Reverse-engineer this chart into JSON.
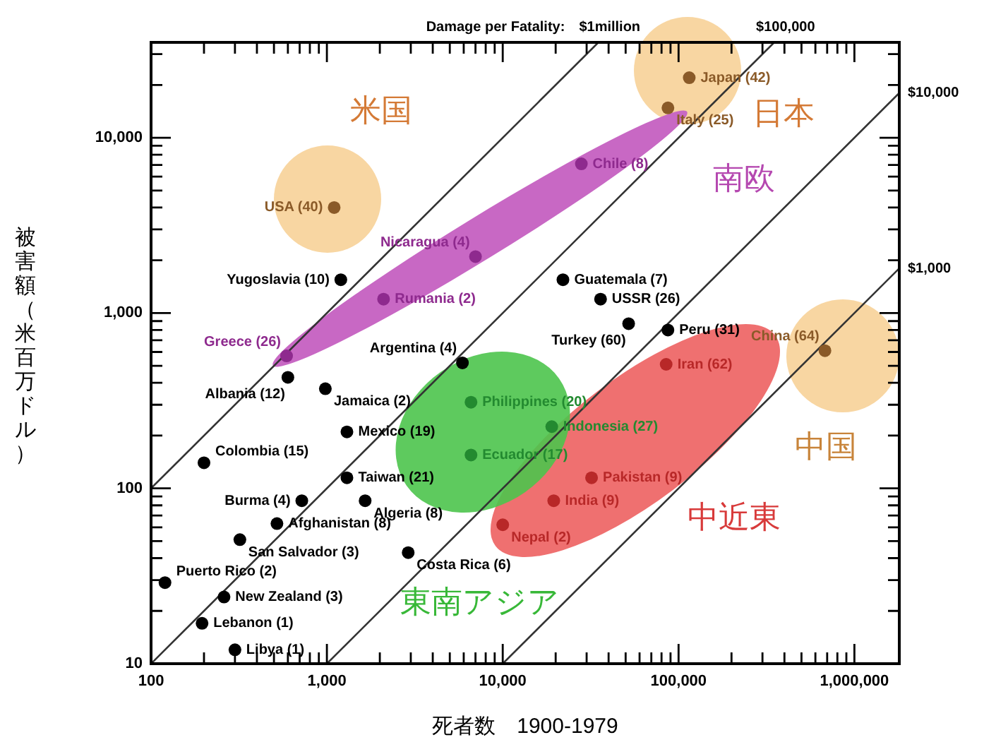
{
  "chart_data": {
    "type": "scatter",
    "xlabel": "死者数　1900-1979",
    "ylabel": "被害額（米百万ドル）",
    "log": "xy",
    "grid": false,
    "legend": false,
    "xlim": [
      100,
      1800000
    ],
    "ylim": [
      10,
      35000
    ],
    "xticks": [
      100,
      {
        "value": 200,
        "label": null
      },
      {
        "value": 300,
        "label": null
      },
      {
        "value": 400,
        "label": null
      },
      {
        "value": 500,
        "label": null
      },
      {
        "value": 600,
        "label": null
      },
      {
        "value": 700,
        "label": null
      },
      {
        "value": 800,
        "label": null
      },
      {
        "value": 900,
        "label": null
      },
      {
        "value": 1000,
        "label": "1,000"
      },
      {
        "value": 2000,
        "label": null
      },
      {
        "value": 3000,
        "label": null
      },
      {
        "value": 4000,
        "label": null
      },
      {
        "value": 5000,
        "label": null
      },
      {
        "value": 6000,
        "label": null
      },
      {
        "value": 7000,
        "label": null
      },
      {
        "value": 8000,
        "label": null
      },
      {
        "value": 9000,
        "label": null
      },
      {
        "value": 10000,
        "label": "10,000"
      },
      {
        "value": 20000,
        "label": null
      },
      {
        "value": 30000,
        "label": null
      },
      {
        "value": 40000,
        "label": null
      },
      {
        "value": 50000,
        "label": null
      },
      {
        "value": 60000,
        "label": null
      },
      {
        "value": 70000,
        "label": null
      },
      {
        "value": 80000,
        "label": null
      },
      {
        "value": 90000,
        "label": null
      },
      {
        "value": 100000,
        "label": "100,000"
      },
      {
        "value": 200000,
        "label": null
      },
      {
        "value": 300000,
        "label": null
      },
      {
        "value": 400000,
        "label": null
      },
      {
        "value": 500000,
        "label": null
      },
      {
        "value": 600000,
        "label": null
      },
      {
        "value": 700000,
        "label": null
      },
      {
        "value": 800000,
        "label": null
      },
      {
        "value": 900000,
        "label": null
      },
      {
        "value": 1000000,
        "label": "1,000,000"
      }
    ],
    "yticks": [
      10,
      {
        "value": 20,
        "label": null
      },
      {
        "value": 30,
        "label": null
      },
      {
        "value": 40,
        "label": null
      },
      {
        "value": 50,
        "label": null
      },
      {
        "value": 60,
        "label": null
      },
      {
        "value": 70,
        "label": null
      },
      {
        "value": 80,
        "label": null
      },
      {
        "value": 90,
        "label": null
      },
      100,
      {
        "value": 200,
        "label": null
      },
      {
        "value": 300,
        "label": null
      },
      {
        "value": 400,
        "label": null
      },
      {
        "value": 500,
        "label": null
      },
      {
        "value": 600,
        "label": null
      },
      {
        "value": 700,
        "label": null
      },
      {
        "value": 800,
        "label": null
      },
      {
        "value": 900,
        "label": null
      },
      {
        "value": 1000,
        "label": "1,000"
      },
      {
        "value": 2000,
        "label": null
      },
      {
        "value": 3000,
        "label": null
      },
      {
        "value": 4000,
        "label": null
      },
      {
        "value": 5000,
        "label": null
      },
      {
        "value": 6000,
        "label": null
      },
      {
        "value": 7000,
        "label": null
      },
      {
        "value": 8000,
        "label": null
      },
      {
        "value": 9000,
        "label": null
      },
      {
        "value": 10000,
        "label": "10,000"
      },
      {
        "value": 20000,
        "label": null
      },
      {
        "value": 30000,
        "label": null
      }
    ],
    "series": [
      {
        "type": "line",
        "name": "$1million",
        "color": "#333333",
        "marker": "none",
        "x": [
          100,
          35000
        ],
        "values": [
          100,
          35000
        ]
      },
      {
        "type": "line",
        "name": "$100,000",
        "color": "#333333",
        "marker": "none",
        "x": [
          100,
          350000
        ],
        "values": [
          10,
          35000
        ]
      },
      {
        "type": "line",
        "name": "$10,000",
        "color": "#333333",
        "marker": "none",
        "x": [
          1000,
          1800000
        ],
        "values": [
          10,
          18000
        ]
      },
      {
        "type": "line",
        "name": "$1,000",
        "color": "#333333",
        "marker": "none",
        "x": [
          10000,
          1800000
        ],
        "values": [
          10,
          1800
        ]
      },
      {
        "marker": "circle",
        "x": [
          1100,
          115000,
          87000,
          680000,
          590,
          2100,
          7000,
          28000,
          1200,
          22000,
          36000,
          52000,
          87000,
          85000,
          5900,
          6600,
          6600,
          19000,
          32000,
          19500,
          10000,
          600,
          980,
          1300,
          200,
          1300,
          720,
          1650,
          520,
          320,
          2900,
          120,
          260,
          195,
          300
        ],
        "values": [
          4000,
          22000,
          14800,
          610,
          570,
          1200,
          2100,
          7100,
          1550,
          1550,
          1200,
          870,
          800,
          510,
          520,
          310,
          155,
          225,
          115,
          85,
          62,
          430,
          370,
          210,
          140,
          115,
          85,
          85,
          63,
          51,
          43,
          29,
          24,
          17,
          12
        ],
        "colors": [
          "#8a5a28",
          "#8a5a28",
          "#8a5a28",
          "#8a5a28",
          "#8e2a8e",
          "#8e2a8e",
          "#8e2a8e",
          "#8e2a8e",
          "#000000",
          "#000000",
          "#000000",
          "#000000",
          "#000000",
          "#b82828",
          "#000000",
          "#238a30",
          "#238a30",
          "#238a30",
          "#b82828",
          "#b82828",
          "#b82828",
          "#000000",
          "#000000",
          "#000000",
          "#000000",
          "#000000",
          "#000000",
          "#000000",
          "#000000",
          "#000000",
          "#000000",
          "#000000",
          "#000000",
          "#000000",
          "#000000"
        ]
      }
    ],
    "annotations": [
      {
        "text": "USA (40)",
        "x": 1100,
        "y": 4000
      },
      {
        "text": "Japan (42)",
        "x": 115000,
        "y": 22000
      },
      {
        "text": "Italy (25)",
        "x": 87000,
        "y": 14800
      },
      {
        "text": "China (64)",
        "x": 680000,
        "y": 610
      },
      {
        "text": "Greece (26)",
        "x": 590,
        "y": 570
      },
      {
        "text": "Rumania (2)",
        "x": 2100,
        "y": 1200
      },
      {
        "text": "Nicaragua (4)",
        "x": 7000,
        "y": 2100
      },
      {
        "text": "Chile (8)",
        "x": 28000,
        "y": 7100
      },
      {
        "text": "Yugoslavia (10)",
        "x": 1200,
        "y": 1550
      },
      {
        "text": "Guatemala (7)",
        "x": 22000,
        "y": 1550
      },
      {
        "text": "USSR (26)",
        "x": 36000,
        "y": 1200
      },
      {
        "text": "Turkey (60)",
        "x": 52000,
        "y": 870
      },
      {
        "text": "Peru (31)",
        "x": 87000,
        "y": 800
      },
      {
        "text": "Iran (62)",
        "x": 85000,
        "y": 510
      },
      {
        "text": "Argentina (4)",
        "x": 5900,
        "y": 520
      },
      {
        "text": "Philippines (20)",
        "x": 6600,
        "y": 310
      },
      {
        "text": "Ecuador (17)",
        "x": 6600,
        "y": 155
      },
      {
        "text": "Indonesia (27)",
        "x": 19000,
        "y": 225
      },
      {
        "text": "Pakistan (9)",
        "x": 32000,
        "y": 115
      },
      {
        "text": "India (9)",
        "x": 19500,
        "y": 85
      },
      {
        "text": "Nepal (2)",
        "x": 10000,
        "y": 62
      },
      {
        "text": "Albania (12)",
        "x": 600,
        "y": 430
      },
      {
        "text": "Jamaica (2)",
        "x": 980,
        "y": 370
      },
      {
        "text": "Mexico (19)",
        "x": 1300,
        "y": 210
      },
      {
        "text": "Colombia (15)",
        "x": 200,
        "y": 140
      },
      {
        "text": "Taiwan (21)",
        "x": 1300,
        "y": 115
      },
      {
        "text": "Burma (4)",
        "x": 720,
        "y": 85
      },
      {
        "text": "Algeria (8)",
        "x": 1650,
        "y": 85
      },
      {
        "text": "Afghanistan (8)",
        "x": 520,
        "y": 63
      },
      {
        "text": "San Salvador (3)",
        "x": 320,
        "y": 51
      },
      {
        "text": "Costa Rica (6)",
        "x": 2900,
        "y": 43
      },
      {
        "text": "Puerto Rico (2)",
        "x": 120,
        "y": 29
      },
      {
        "text": "New Zealand (3)",
        "x": 260,
        "y": 24
      },
      {
        "text": "Lebanon (1)",
        "x": 195,
        "y": 17
      },
      {
        "text": "Libya (1)",
        "x": 300,
        "y": 12
      },
      "米国",
      "日本",
      "南欧",
      "中国",
      "中近東",
      "東南アジア",
      "Damage per Fatality:"
    ]
  }
}
